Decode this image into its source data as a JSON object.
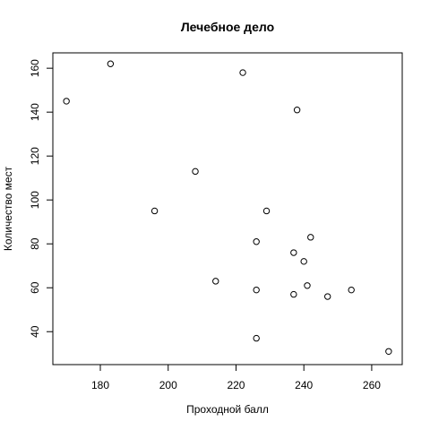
{
  "chart_data": {
    "type": "scatter",
    "title": "Лечебное дело",
    "xlabel": "Проходной балл",
    "ylabel": "Количество мест",
    "xlim": [
      166,
      269
    ],
    "ylim": [
      25,
      167
    ],
    "xticks": [
      180,
      200,
      220,
      240,
      260
    ],
    "yticks": [
      40,
      60,
      80,
      100,
      120,
      140,
      160
    ],
    "grid": false,
    "marker": "open-circle",
    "points": [
      {
        "x": 170,
        "y": 145
      },
      {
        "x": 183,
        "y": 162
      },
      {
        "x": 196,
        "y": 95
      },
      {
        "x": 208,
        "y": 113
      },
      {
        "x": 214,
        "y": 63
      },
      {
        "x": 222,
        "y": 158
      },
      {
        "x": 226,
        "y": 81
      },
      {
        "x": 226,
        "y": 59
      },
      {
        "x": 226,
        "y": 37
      },
      {
        "x": 229,
        "y": 95
      },
      {
        "x": 237,
        "y": 76
      },
      {
        "x": 237,
        "y": 57
      },
      {
        "x": 238,
        "y": 141
      },
      {
        "x": 240,
        "y": 72
      },
      {
        "x": 241,
        "y": 61
      },
      {
        "x": 242,
        "y": 83
      },
      {
        "x": 247,
        "y": 56
      },
      {
        "x": 254,
        "y": 59
      },
      {
        "x": 265,
        "y": 31
      }
    ]
  }
}
